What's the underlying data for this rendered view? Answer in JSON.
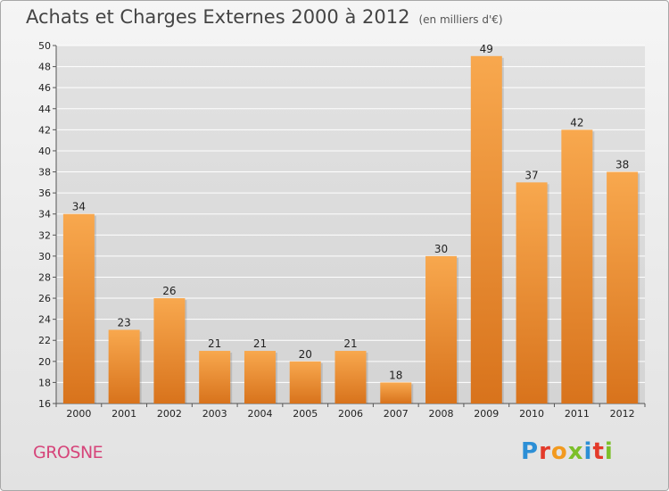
{
  "title": "Achats et Charges Externes 2000 à 2012",
  "subtitle": "(en milliers d'€)",
  "commune": "GROSNE",
  "brand": "Proxiti",
  "colors": {
    "bar_top": "#f8a84e",
    "bar_bottom": "#d8731c",
    "grid": "#ffffff"
  },
  "chart_data": {
    "type": "bar",
    "title": "Achats et Charges Externes 2000 à 2012",
    "subtitle": "(en milliers d'€)",
    "categories": [
      "2000",
      "2001",
      "2002",
      "2003",
      "2004",
      "2005",
      "2006",
      "2007",
      "2008",
      "2009",
      "2010",
      "2011",
      "2012"
    ],
    "values": [
      34,
      23,
      26,
      21,
      21,
      20,
      21,
      18,
      30,
      49,
      37,
      42,
      38
    ],
    "ylim": [
      16,
      50
    ],
    "yticks": [
      16,
      18,
      20,
      22,
      24,
      26,
      28,
      30,
      32,
      34,
      36,
      38,
      40,
      42,
      44,
      46,
      48,
      50
    ],
    "grid": true,
    "xlabel": "",
    "ylabel": ""
  }
}
